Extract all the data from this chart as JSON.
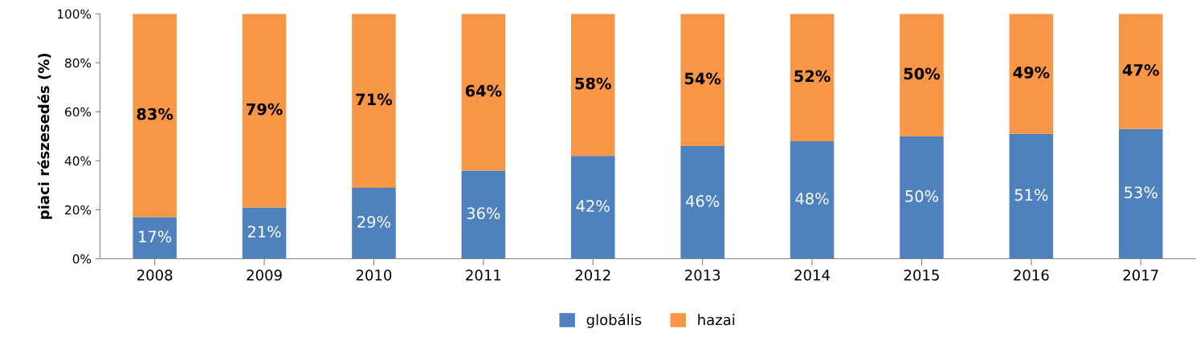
{
  "chart_data": {
    "type": "bar",
    "stacked": true,
    "ylabel": "piaci részesedés (%)",
    "categories": [
      "2008",
      "2009",
      "2010",
      "2011",
      "2012",
      "2013",
      "2014",
      "2015",
      "2016",
      "2017"
    ],
    "series": [
      {
        "name": "globális",
        "color": "#4f81bd",
        "values": [
          17,
          21,
          29,
          36,
          42,
          46,
          48,
          50,
          51,
          53
        ],
        "value_labels": [
          "17%",
          "21%",
          "29%",
          "36%",
          "42%",
          "46%",
          "48%",
          "50%",
          "51%",
          "53%"
        ]
      },
      {
        "name": "hazai",
        "color": "#f79646",
        "values": [
          83,
          79,
          71,
          64,
          58,
          54,
          52,
          50,
          49,
          47
        ],
        "value_labels": [
          "83%",
          "79%",
          "71%",
          "64%",
          "58%",
          "54%",
          "52%",
          "50%",
          "49%",
          "47%"
        ]
      }
    ],
    "ylim": [
      0,
      100
    ],
    "yticks": [
      {
        "value": 0,
        "label": "0%"
      },
      {
        "value": 20,
        "label": "20%"
      },
      {
        "value": 40,
        "label": "40%"
      },
      {
        "value": 60,
        "label": "60%"
      },
      {
        "value": 80,
        "label": "80%"
      },
      {
        "value": 100,
        "label": "100%"
      }
    ],
    "grid": false,
    "legend": "bottom"
  }
}
